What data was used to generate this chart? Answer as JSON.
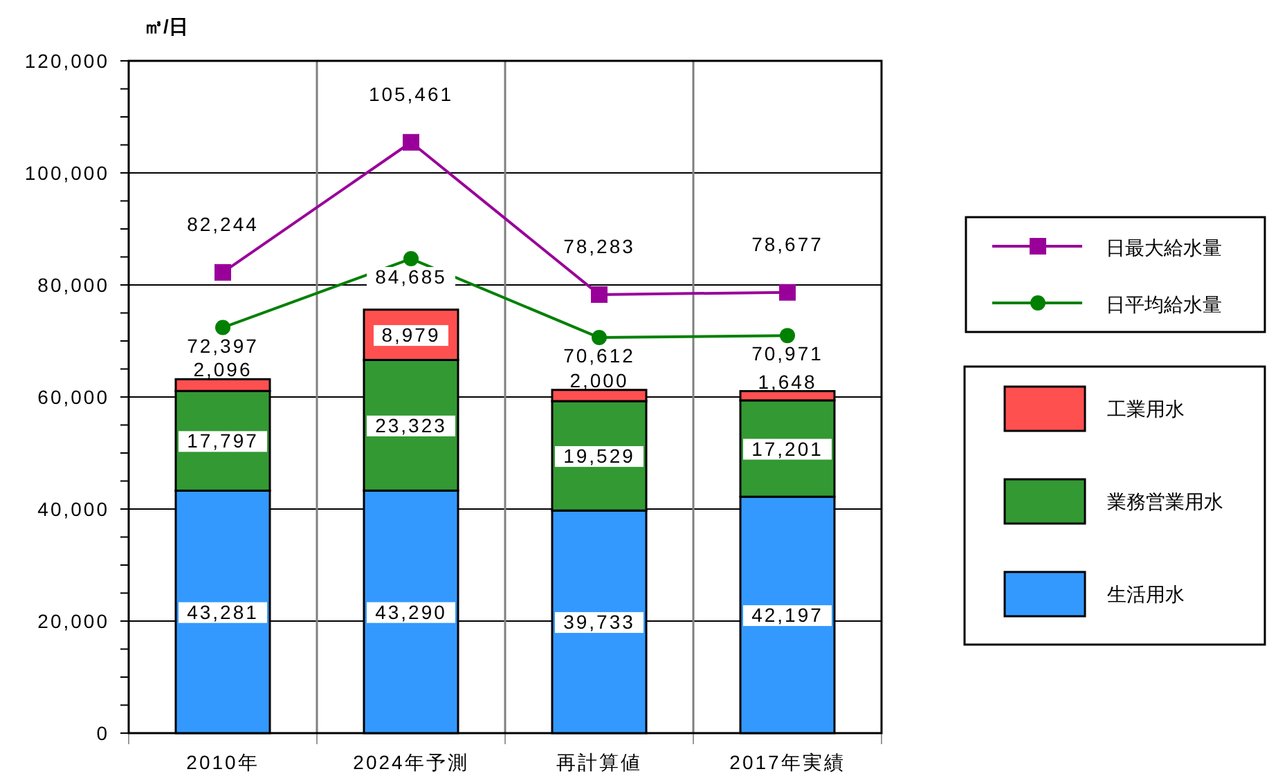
{
  "chart_data": {
    "type": "bar",
    "stacked": true,
    "ylabel": "㎥/日",
    "categories": [
      "2010年",
      "2024年予測",
      "再計算値",
      "2017年実績"
    ],
    "series": [
      {
        "name": "生活用水",
        "color": "#3399ff",
        "values": [
          43281,
          43290,
          39733,
          42197
        ],
        "value_labels": [
          "43,281",
          "43,290",
          "39,733",
          "42,197"
        ]
      },
      {
        "name": "業務営業用水",
        "color": "#339933",
        "values": [
          17797,
          23323,
          19529,
          17201
        ],
        "value_labels": [
          "17,797",
          "23,323",
          "19,529",
          "17,201"
        ]
      },
      {
        "name": "工業用水",
        "color": "#ff5050",
        "values": [
          2096,
          8979,
          2000,
          1648
        ],
        "value_labels": [
          "2,096",
          "8,979",
          "2,000",
          "1,648"
        ]
      },
      {
        "name": "日最大給水量",
        "type": "line",
        "color": "#990099",
        "marker": "square",
        "values": [
          82244,
          105461,
          78283,
          78677
        ],
        "value_labels": [
          "82,244",
          "105,461",
          "78,283",
          "78,677"
        ]
      },
      {
        "name": "日平均給水量",
        "type": "line",
        "color": "#008000",
        "marker": "circle",
        "values": [
          72397,
          84685,
          70612,
          70971
        ],
        "value_labels": [
          "72,397",
          "84,685",
          "70,612",
          "70,971"
        ]
      }
    ],
    "ylim": [
      0,
      120000
    ],
    "yticks": [
      {
        "value": 0,
        "label": "0"
      },
      {
        "value": 5000,
        "label": null
      },
      {
        "value": 10000,
        "label": null
      },
      {
        "value": 15000,
        "label": null
      },
      {
        "value": 20000,
        "label": "20,000"
      },
      {
        "value": 25000,
        "label": null
      },
      {
        "value": 30000,
        "label": null
      },
      {
        "value": 35000,
        "label": null
      },
      {
        "value": 40000,
        "label": "40,000"
      },
      {
        "value": 45000,
        "label": null
      },
      {
        "value": 50000,
        "label": null
      },
      {
        "value": 55000,
        "label": null
      },
      {
        "value": 60000,
        "label": "60,000"
      },
      {
        "value": 65000,
        "label": null
      },
      {
        "value": 70000,
        "label": null
      },
      {
        "value": 75000,
        "label": null
      },
      {
        "value": 80000,
        "label": "80,000"
      },
      {
        "value": 85000,
        "label": null
      },
      {
        "value": 90000,
        "label": null
      },
      {
        "value": 95000,
        "label": null
      },
      {
        "value": 100000,
        "label": "100,000"
      },
      {
        "value": 105000,
        "label": null
      },
      {
        "value": 110000,
        "label": null
      },
      {
        "value": 115000,
        "label": null
      },
      {
        "value": 120000,
        "label": "120,000"
      }
    ],
    "grid": true,
    "legend": "right"
  }
}
